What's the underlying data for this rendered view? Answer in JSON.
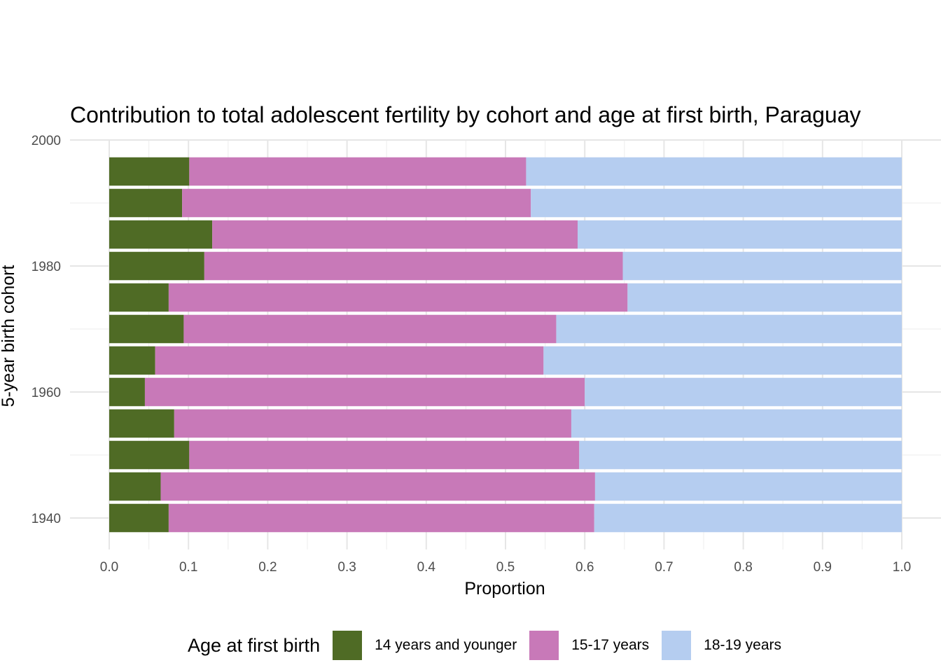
{
  "chart_data": {
    "type": "bar",
    "orientation": "horizontal",
    "stacked": true,
    "title": "Contribution to total adolescent fertility by cohort and age at first birth,  Paraguay",
    "xlabel": "Proportion",
    "ylabel": "5-year birth cohort",
    "xlim": [
      0,
      1
    ],
    "ylim": [
      1938,
      2000
    ],
    "x_ticks": [
      "0.0",
      "0.1",
      "0.2",
      "0.3",
      "0.4",
      "0.5",
      "0.6",
      "0.7",
      "0.8",
      "0.9",
      "1.0"
    ],
    "y_ticks": [
      "1940",
      "1960",
      "1980",
      "2000"
    ],
    "grid": true,
    "legend_position": "bottom",
    "legend_title": "Age at first birth",
    "categories": [
      1940,
      1945,
      1950,
      1955,
      1960,
      1965,
      1970,
      1975,
      1980,
      1985,
      1990,
      1995
    ],
    "series": [
      {
        "name": "14 years and younger",
        "color": "#4f6b25",
        "values": [
          0.075,
          0.065,
          0.101,
          0.082,
          0.045,
          0.058,
          0.094,
          0.075,
          0.12,
          0.13,
          0.092,
          0.101
        ]
      },
      {
        "name": "15-17 years",
        "color": "#c879b8",
        "values": [
          0.537,
          0.548,
          0.492,
          0.501,
          0.555,
          0.49,
          0.47,
          0.579,
          0.528,
          0.461,
          0.44,
          0.425
        ]
      },
      {
        "name": "18-19 years",
        "color": "#b5cdf0",
        "values": [
          0.388,
          0.387,
          0.407,
          0.417,
          0.4,
          0.452,
          0.436,
          0.346,
          0.352,
          0.409,
          0.468,
          0.474
        ]
      }
    ]
  }
}
